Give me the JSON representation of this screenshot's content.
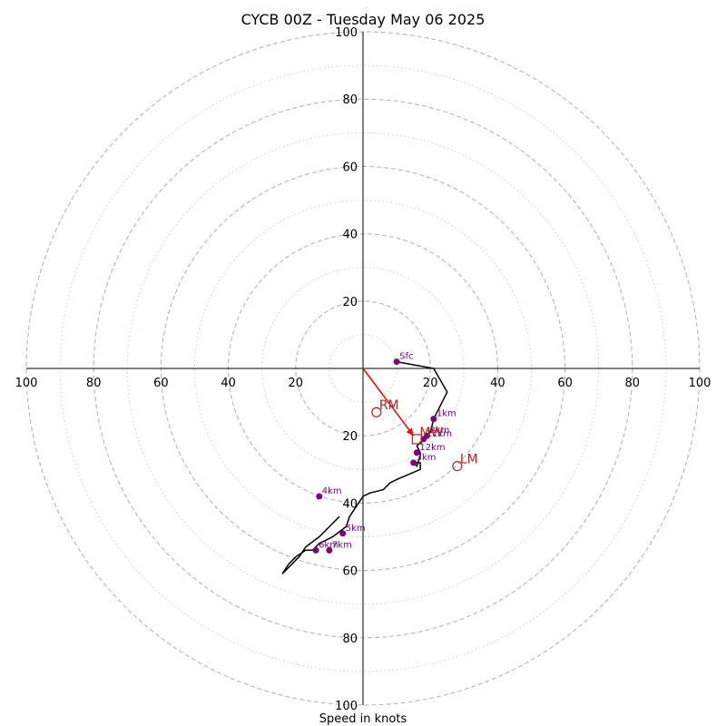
{
  "chart_data": {
    "type": "hodograph",
    "title": "CYCB 00Z - Tuesday May 06 2025",
    "xlabel": "Speed in knots",
    "range": [
      -100,
      100
    ],
    "ring_major_step": 20,
    "ring_minor_step": 10,
    "axis_ticks": [
      100,
      80,
      60,
      40,
      20
    ],
    "trace": {
      "x": [
        10,
        21,
        25,
        22,
        21,
        20,
        19,
        17,
        16,
        17,
        17,
        17,
        16,
        15,
        17,
        17,
        10,
        8,
        6,
        2,
        0,
        -2,
        -4,
        -5,
        -9,
        -13,
        -15,
        -17,
        -20,
        -22,
        -24,
        -19,
        -17,
        -13,
        -10,
        -7
      ],
      "y": [
        2,
        0,
        -7,
        -13,
        -15,
        -19,
        -20,
        -22,
        -23,
        -25,
        -25,
        -26,
        -29,
        -28,
        -28,
        -30,
        -33,
        -34,
        -36,
        -37,
        -38,
        -41,
        -44,
        -47,
        -50,
        -52,
        -54,
        -54,
        -56,
        -58,
        -61,
        -56,
        -53,
        -50,
        -47,
        -44
      ]
    },
    "height_markers": [
      {
        "label": "Sfc",
        "x": 10,
        "y": 2
      },
      {
        "label": "1km",
        "x": 21,
        "y": -15
      },
      {
        "label": "2km",
        "x": 19,
        "y": -20
      },
      {
        "label": "11km",
        "x": 18,
        "y": -21
      },
      {
        "label": "12km",
        "x": 16,
        "y": -25
      },
      {
        "label": "3km",
        "x": 15,
        "y": -28
      },
      {
        "label": "4km",
        "x": -13,
        "y": -38
      },
      {
        "label": "5km",
        "x": -6,
        "y": -49
      },
      {
        "label": "6km",
        "x": -14,
        "y": -54
      },
      {
        "label": "7km",
        "x": -10,
        "y": -54
      }
    ],
    "storm_motion": [
      {
        "label": "RM",
        "x": 4,
        "y": -13,
        "shape": "circle"
      },
      {
        "label": "LM",
        "x": 28,
        "y": -29,
        "shape": "circle"
      },
      {
        "label": "MW",
        "x": 16,
        "y": -21,
        "shape": "square"
      }
    ],
    "shear_vector": {
      "from": [
        0,
        0
      ],
      "to": [
        15,
        -20
      ]
    },
    "colors": {
      "trace": "#000000",
      "height_marker": "#800080",
      "storm_motion": "#b22222",
      "shear_vector": "#ff0000",
      "ring_major": "#bbbbbb",
      "ring_minor": "#cccccc"
    }
  }
}
